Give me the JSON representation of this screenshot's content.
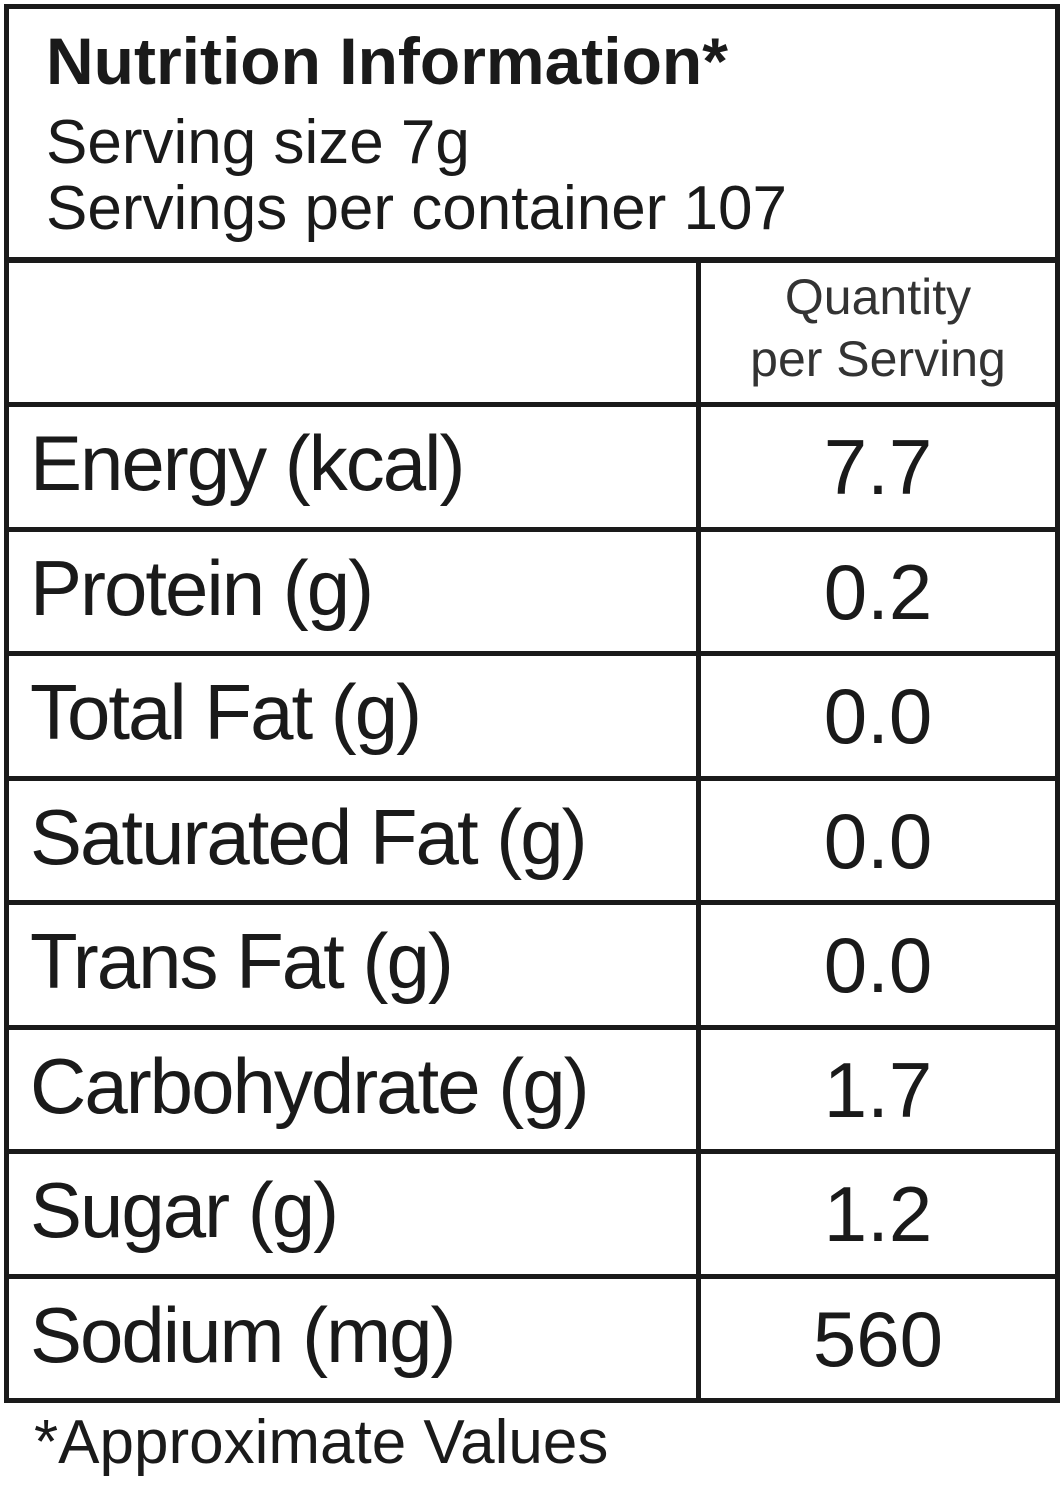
{
  "header": {
    "title": "Nutrition Information*",
    "serving_size": "Serving size 7g",
    "servings_per_container": "Servings per container 107"
  },
  "table": {
    "column_header": [
      "Quantity",
      "per Serving"
    ],
    "rows": [
      [
        "Energy (kcal)",
        "7.7"
      ],
      [
        "Protein (g)",
        "0.2"
      ],
      [
        "Total Fat (g)",
        "0.0"
      ],
      [
        "Saturated Fat (g)",
        "0.0"
      ],
      [
        "Trans Fat (g)",
        "0.0"
      ],
      [
        "Carbohydrate (g)",
        "1.7"
      ],
      [
        "Sugar (g)",
        "1.2"
      ],
      [
        "Sodium (mg)",
        "560"
      ]
    ]
  },
  "footnote": "*Approximate Values"
}
